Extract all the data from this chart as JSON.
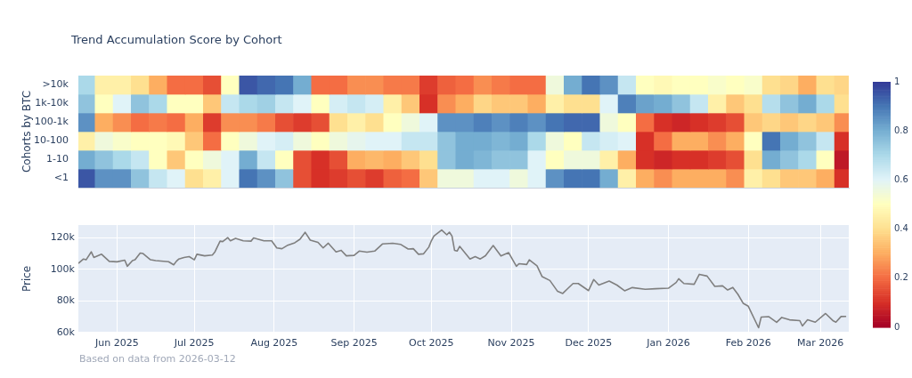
{
  "chart_data": [
    {
      "type": "heatmap",
      "title": "Trend Accumulation Score by Cohort",
      "ylabel": "Cohorts by BTC",
      "xlim": [
        "2025-05-17",
        "2026-03-12"
      ],
      "tick_labels": "y",
      "clim": [
        0,
        1
      ],
      "cticks": [
        0,
        0.2,
        0.4,
        0.6,
        0.8,
        1
      ],
      "x": [
        "2025-05-20",
        "2025-05-27",
        "2025-06-03",
        "2025-06-10",
        "2025-06-17",
        "2025-06-24",
        "2025-07-01",
        "2025-07-08",
        "2025-07-15",
        "2025-07-22",
        "2025-07-29",
        "2025-08-05",
        "2025-08-12",
        "2025-08-19",
        "2025-08-26",
        "2025-09-02",
        "2025-09-09",
        "2025-09-16",
        "2025-09-23",
        "2025-09-30",
        "2025-10-07",
        "2025-10-14",
        "2025-10-21",
        "2025-10-28",
        "2025-11-04",
        "2025-11-11",
        "2025-11-18",
        "2025-11-25",
        "2025-12-02",
        "2025-12-09",
        "2025-12-16",
        "2025-12-23",
        "2025-12-30",
        "2026-01-06",
        "2026-01-13",
        "2026-01-20",
        "2026-01-27",
        "2026-02-03",
        "2026-02-10",
        "2026-02-17",
        "2026-02-24",
        "2026-03-03",
        "2026-03-10"
      ],
      "y_categories": [
        ">10k",
        "1k-10k",
        "100-1k",
        "10-100",
        "1-10",
        "<1"
      ],
      "cells": [
        [
          0.7,
          0.45,
          0.45,
          0.4,
          0.3,
          0.2,
          0.2,
          0.15,
          0.5,
          0.95,
          0.92,
          0.9,
          0.8,
          0.2,
          0.2,
          0.25,
          0.25,
          0.22,
          0.22,
          0.12,
          0.18,
          0.2,
          0.25,
          0.22,
          0.2,
          0.2,
          0.55,
          0.8,
          0.9,
          0.85,
          0.65,
          0.5,
          0.48,
          0.5,
          0.5,
          0.52,
          0.5,
          0.52,
          0.4,
          0.38,
          0.3,
          0.4,
          0.38
        ],
        [
          0.75,
          0.5,
          0.6,
          0.75,
          0.7,
          0.5,
          0.5,
          0.35,
          0.65,
          0.7,
          0.72,
          0.65,
          0.6,
          0.5,
          0.62,
          0.65,
          0.62,
          0.45,
          0.35,
          0.1,
          0.25,
          0.3,
          0.38,
          0.35,
          0.35,
          0.3,
          0.45,
          0.4,
          0.4,
          0.6,
          0.88,
          0.82,
          0.8,
          0.75,
          0.65,
          0.45,
          0.35,
          0.4,
          0.68,
          0.75,
          0.8,
          0.7,
          0.4
        ],
        [
          0.85,
          0.3,
          0.25,
          0.2,
          0.22,
          0.2,
          0.3,
          0.12,
          0.25,
          0.25,
          0.22,
          0.15,
          0.12,
          0.15,
          0.4,
          0.45,
          0.4,
          0.5,
          0.55,
          0.6,
          0.85,
          0.85,
          0.88,
          0.85,
          0.88,
          0.85,
          0.9,
          0.92,
          0.92,
          0.55,
          0.5,
          0.2,
          0.1,
          0.08,
          0.1,
          0.12,
          0.15,
          0.35,
          0.38,
          0.35,
          0.38,
          0.35,
          0.25
        ],
        [
          0.45,
          0.55,
          0.52,
          0.5,
          0.5,
          0.48,
          0.35,
          0.2,
          0.5,
          0.55,
          0.6,
          0.62,
          0.55,
          0.5,
          0.55,
          0.58,
          0.6,
          0.6,
          0.65,
          0.65,
          0.75,
          0.8,
          0.8,
          0.78,
          0.8,
          0.7,
          0.55,
          0.5,
          0.65,
          0.62,
          0.6,
          0.1,
          0.2,
          0.3,
          0.3,
          0.25,
          0.3,
          0.5,
          0.9,
          0.8,
          0.75,
          0.65,
          0.1
        ],
        [
          0.8,
          0.75,
          0.7,
          0.65,
          0.5,
          0.35,
          0.5,
          0.55,
          0.6,
          0.8,
          0.65,
          0.5,
          0.15,
          0.1,
          0.15,
          0.3,
          0.32,
          0.3,
          0.35,
          0.4,
          0.75,
          0.8,
          0.78,
          0.75,
          0.75,
          0.6,
          0.5,
          0.55,
          0.55,
          0.45,
          0.3,
          0.1,
          0.08,
          0.1,
          0.1,
          0.12,
          0.15,
          0.4,
          0.8,
          0.75,
          0.7,
          0.5,
          0.05
        ],
        [
          0.95,
          0.85,
          0.85,
          0.75,
          0.65,
          0.6,
          0.4,
          0.45,
          0.6,
          0.9,
          0.85,
          0.75,
          0.15,
          0.1,
          0.12,
          0.15,
          0.12,
          0.18,
          0.2,
          0.35,
          0.55,
          0.55,
          0.6,
          0.6,
          0.55,
          0.6,
          0.85,
          0.9,
          0.9,
          0.8,
          0.45,
          0.3,
          0.25,
          0.3,
          0.3,
          0.3,
          0.25,
          0.45,
          0.4,
          0.35,
          0.35,
          0.3,
          0.1
        ]
      ]
    },
    {
      "type": "line",
      "ylabel": "Price",
      "grid": true,
      "legend": false,
      "marker": "none",
      "line_style": "solid",
      "color": "#7f7f7f",
      "xlim": [
        "2025-05-17",
        "2026-03-12"
      ],
      "xticks": [
        {
          "value": "2025-06-01",
          "label": "Jun 2025"
        },
        {
          "value": "2025-07-01",
          "label": "Jul 2025"
        },
        {
          "value": "2025-08-01",
          "label": "Aug 2025"
        },
        {
          "value": "2025-09-01",
          "label": "Sep 2025"
        },
        {
          "value": "2025-10-01",
          "label": "Oct 2025"
        },
        {
          "value": "2025-11-01",
          "label": "Nov 2025"
        },
        {
          "value": "2025-12-01",
          "label": "Dec 2025"
        },
        {
          "value": "2026-01-01",
          "label": "Jan 2026"
        },
        {
          "value": "2026-02-01",
          "label": "Feb 2026"
        },
        {
          "value": "2026-03-01",
          "label": "Mar 2026"
        }
      ],
      "ylim": [
        60000,
        128000
      ],
      "yticks": [
        {
          "value": 60000,
          "label": "60k"
        },
        {
          "value": 80000,
          "label": "80k"
        },
        {
          "value": 100000,
          "label": "100k"
        },
        {
          "value": 120000,
          "label": "120k"
        }
      ],
      "annotations": [
        "Based on data from 2026-03-12"
      ],
      "x": [
        "2025-05-17",
        "2025-05-19",
        "2025-05-20",
        "2025-05-22",
        "2025-05-23",
        "2025-05-26",
        "2025-05-29",
        "2025-06-01",
        "2025-06-04",
        "2025-06-05",
        "2025-06-07",
        "2025-06-08",
        "2025-06-10",
        "2025-06-11",
        "2025-06-14",
        "2025-06-16",
        "2025-06-21",
        "2025-06-23",
        "2025-06-24",
        "2025-06-25",
        "2025-06-27",
        "2025-06-29",
        "2025-07-01",
        "2025-07-02",
        "2025-07-05",
        "2025-07-08",
        "2025-07-09",
        "2025-07-11",
        "2025-07-12",
        "2025-07-14",
        "2025-07-15",
        "2025-07-17",
        "2025-07-20",
        "2025-07-23",
        "2025-07-24",
        "2025-07-28",
        "2025-07-31",
        "2025-08-02",
        "2025-08-04",
        "2025-08-06",
        "2025-08-09",
        "2025-08-11",
        "2025-08-13",
        "2025-08-15",
        "2025-08-18",
        "2025-08-20",
        "2025-08-22",
        "2025-08-25",
        "2025-08-27",
        "2025-08-29",
        "2025-09-01",
        "2025-09-03",
        "2025-09-06",
        "2025-09-09",
        "2025-09-12",
        "2025-09-16",
        "2025-09-19",
        "2025-09-22",
        "2025-09-24",
        "2025-09-26",
        "2025-09-28",
        "2025-09-30",
        "2025-10-01",
        "2025-10-02",
        "2025-10-05",
        "2025-10-07",
        "2025-10-08",
        "2025-10-09",
        "2025-10-10",
        "2025-10-11",
        "2025-10-12",
        "2025-10-16",
        "2025-10-18",
        "2025-10-20",
        "2025-10-22",
        "2025-10-25",
        "2025-10-28",
        "2025-10-31",
        "2025-11-03",
        "2025-11-04",
        "2025-11-07",
        "2025-11-08",
        "2025-11-11",
        "2025-11-13",
        "2025-11-16",
        "2025-11-19",
        "2025-11-21",
        "2025-11-23",
        "2025-11-25",
        "2025-11-27",
        "2025-12-01",
        "2025-12-03",
        "2025-12-05",
        "2025-12-09",
        "2025-12-12",
        "2025-12-15",
        "2025-12-18",
        "2025-12-23",
        "2025-12-27",
        "2026-01-01",
        "2026-01-04",
        "2026-01-05",
        "2026-01-07",
        "2026-01-11",
        "2026-01-13",
        "2026-01-16",
        "2026-01-19",
        "2026-01-22",
        "2026-01-24",
        "2026-01-26",
        "2026-01-28",
        "2026-01-30",
        "2026-02-01",
        "2026-02-05",
        "2026-02-06",
        "2026-02-09",
        "2026-02-12",
        "2026-02-14",
        "2026-02-17",
        "2026-02-21",
        "2026-02-22",
        "2026-02-24",
        "2026-02-27",
        "2026-03-03",
        "2026-03-06",
        "2026-03-07",
        "2026-03-09",
        "2026-03-11"
      ],
      "values": [
        103700,
        106500,
        106000,
        111000,
        107500,
        109500,
        105000,
        104700,
        105800,
        101900,
        105500,
        106000,
        110300,
        110000,
        106000,
        105500,
        104800,
        102800,
        105000,
        106500,
        107500,
        108000,
        106000,
        109500,
        108500,
        109000,
        111000,
        117800,
        117500,
        120000,
        118000,
        119500,
        118000,
        117800,
        119800,
        118000,
        118000,
        113500,
        113000,
        115000,
        116800,
        119000,
        123400,
        118400,
        117000,
        113500,
        116500,
        111000,
        112000,
        108500,
        108800,
        111500,
        110800,
        111500,
        116000,
        116500,
        115800,
        112800,
        113000,
        109500,
        109800,
        114000,
        118000,
        121000,
        124800,
        121800,
        123500,
        121000,
        112000,
        111500,
        114500,
        106500,
        108000,
        106500,
        108600,
        115000,
        108400,
        110500,
        101900,
        103500,
        103000,
        106000,
        102200,
        95300,
        92900,
        86000,
        84700,
        87900,
        91000,
        91000,
        86500,
        93500,
        90000,
        92500,
        90000,
        86400,
        88400,
        87300,
        87700,
        88000,
        91600,
        94000,
        91000,
        90500,
        96800,
        95700,
        89200,
        89500,
        86900,
        88500,
        84100,
        78500,
        76600,
        63000,
        69700,
        70000,
        66400,
        69500,
        68000,
        67500,
        64100,
        68000,
        66500,
        72000,
        67300,
        66500,
        70100,
        70200
      ]
    }
  ]
}
